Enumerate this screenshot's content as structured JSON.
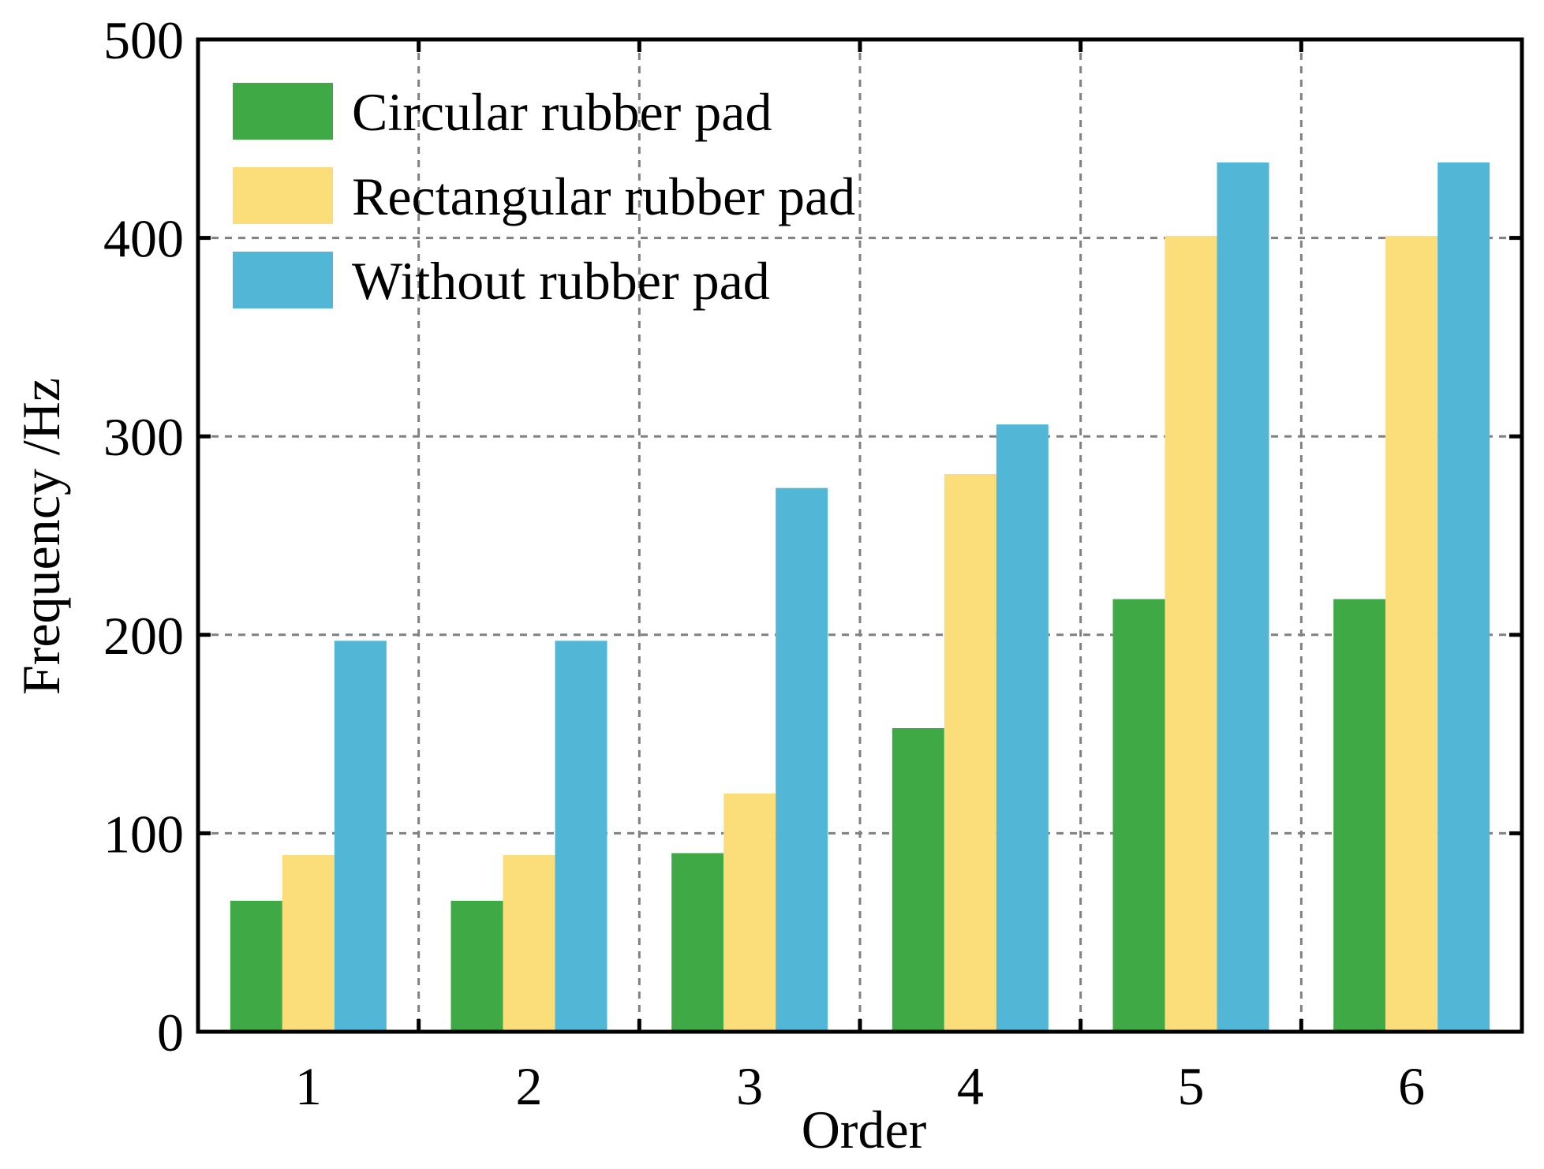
{
  "chart_data": {
    "type": "bar",
    "title": "",
    "xlabel": "Order",
    "ylabel": "Frequency /Hz",
    "categories": [
      "1",
      "2",
      "3",
      "4",
      "5",
      "6"
    ],
    "ylim": [
      0,
      500
    ],
    "yticks": [
      "0",
      "100",
      "200",
      "300",
      "400",
      "500"
    ],
    "grid": true,
    "legend_position": "top-left",
    "series": [
      {
        "name": "Circular rubber pad",
        "color": "#3fa945",
        "values": [
          66,
          66,
          90,
          153,
          218,
          218
        ]
      },
      {
        "name": "Rectangular rubber pad",
        "color": "#fbde7a",
        "values": [
          89,
          89,
          120,
          281,
          401,
          401
        ]
      },
      {
        "name": "Without rubber pad",
        "color": "#52b6d6",
        "values": [
          197,
          197,
          274,
          306,
          438,
          438
        ]
      }
    ]
  }
}
